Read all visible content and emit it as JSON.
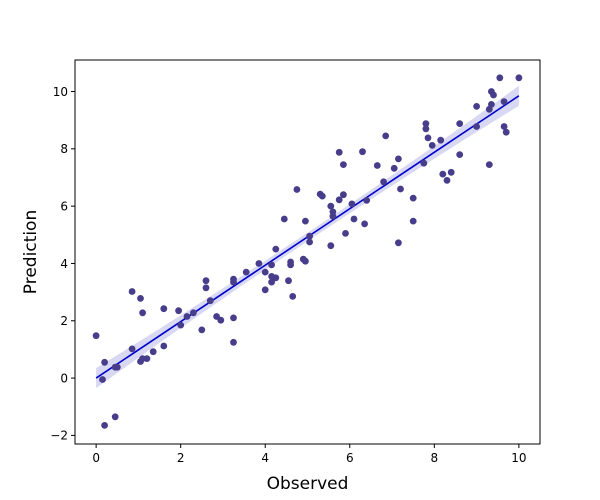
{
  "chart_data": {
    "type": "scatter",
    "title": "",
    "xlabel": "Observed",
    "ylabel": "Prediction",
    "xlim": [
      -0.5,
      10.5
    ],
    "ylim": [
      -2.3,
      11.1
    ],
    "xticks": [
      0,
      2,
      4,
      6,
      8,
      10
    ],
    "yticks": [
      -2,
      0,
      2,
      4,
      6,
      8,
      10
    ],
    "xtick_labels": [
      "0",
      "2",
      "4",
      "6",
      "8",
      "10"
    ],
    "ytick_labels": [
      "−2",
      "0",
      "2",
      "4",
      "6",
      "8",
      "10"
    ],
    "grid": false,
    "legend": "none",
    "colors": {
      "points": "#483d8b",
      "regression_line": "#0000cd",
      "confidence_band": "#c8c8ee"
    },
    "regression": {
      "x": [
        0,
        10
      ],
      "y": [
        0.0,
        9.85
      ],
      "band_halfwidth": [
        0.35,
        0.15,
        0.35
      ]
    },
    "points": [
      [
        0.0,
        1.48
      ],
      [
        0.15,
        -0.05
      ],
      [
        0.2,
        0.55
      ],
      [
        0.2,
        -1.65
      ],
      [
        0.45,
        0.38
      ],
      [
        0.45,
        -1.35
      ],
      [
        0.5,
        0.38
      ],
      [
        0.85,
        1.02
      ],
      [
        0.85,
        3.02
      ],
      [
        1.05,
        0.58
      ],
      [
        1.05,
        2.78
      ],
      [
        1.1,
        0.68
      ],
      [
        1.1,
        2.28
      ],
      [
        1.2,
        0.68
      ],
      [
        1.35,
        0.92
      ],
      [
        1.6,
        1.12
      ],
      [
        1.6,
        2.42
      ],
      [
        1.95,
        2.35
      ],
      [
        2.0,
        1.85
      ],
      [
        2.15,
        2.15
      ],
      [
        2.3,
        2.28
      ],
      [
        2.5,
        1.68
      ],
      [
        2.6,
        3.4
      ],
      [
        2.6,
        3.15
      ],
      [
        2.7,
        2.7
      ],
      [
        2.85,
        2.15
      ],
      [
        2.95,
        2.02
      ],
      [
        3.25,
        3.45
      ],
      [
        3.25,
        3.35
      ],
      [
        3.25,
        2.1
      ],
      [
        3.25,
        1.25
      ],
      [
        3.55,
        3.7
      ],
      [
        3.85,
        4.0
      ],
      [
        4.0,
        3.7
      ],
      [
        4.0,
        3.08
      ],
      [
        4.15,
        3.95
      ],
      [
        4.15,
        3.55
      ],
      [
        4.15,
        3.35
      ],
      [
        4.25,
        4.5
      ],
      [
        4.25,
        3.5
      ],
      [
        4.45,
        5.55
      ],
      [
        4.55,
        3.4
      ],
      [
        4.6,
        4.05
      ],
      [
        4.6,
        3.95
      ],
      [
        4.65,
        2.85
      ],
      [
        4.75,
        6.58
      ],
      [
        4.9,
        4.15
      ],
      [
        4.95,
        5.48
      ],
      [
        4.95,
        4.08
      ],
      [
        5.05,
        4.95
      ],
      [
        5.05,
        4.75
      ],
      [
        5.3,
        6.42
      ],
      [
        5.35,
        6.35
      ],
      [
        5.55,
        6.0
      ],
      [
        5.55,
        4.62
      ],
      [
        5.6,
        5.8
      ],
      [
        5.6,
        5.65
      ],
      [
        5.75,
        7.88
      ],
      [
        5.75,
        6.22
      ],
      [
        5.85,
        7.45
      ],
      [
        5.85,
        6.4
      ],
      [
        5.9,
        5.05
      ],
      [
        6.05,
        6.08
      ],
      [
        6.1,
        5.55
      ],
      [
        6.3,
        7.9
      ],
      [
        6.35,
        5.38
      ],
      [
        6.4,
        6.2
      ],
      [
        6.65,
        7.42
      ],
      [
        6.8,
        6.85
      ],
      [
        6.85,
        8.45
      ],
      [
        7.05,
        7.32
      ],
      [
        7.15,
        7.65
      ],
      [
        7.15,
        4.72
      ],
      [
        7.2,
        6.6
      ],
      [
        7.5,
        6.28
      ],
      [
        7.5,
        5.48
      ],
      [
        7.75,
        7.5
      ],
      [
        7.8,
        8.88
      ],
      [
        7.8,
        8.7
      ],
      [
        7.85,
        8.38
      ],
      [
        7.95,
        8.12
      ],
      [
        8.15,
        8.3
      ],
      [
        8.2,
        7.12
      ],
      [
        8.3,
        6.9
      ],
      [
        8.4,
        7.18
      ],
      [
        8.6,
        8.88
      ],
      [
        8.6,
        7.8
      ],
      [
        9.0,
        9.48
      ],
      [
        9.0,
        8.78
      ],
      [
        9.3,
        9.38
      ],
      [
        9.3,
        7.45
      ],
      [
        9.35,
        10.0
      ],
      [
        9.35,
        9.55
      ],
      [
        9.4,
        9.88
      ],
      [
        9.55,
        10.48
      ],
      [
        9.65,
        9.65
      ],
      [
        9.65,
        8.78
      ],
      [
        9.7,
        8.58
      ],
      [
        10.0,
        10.48
      ]
    ]
  }
}
